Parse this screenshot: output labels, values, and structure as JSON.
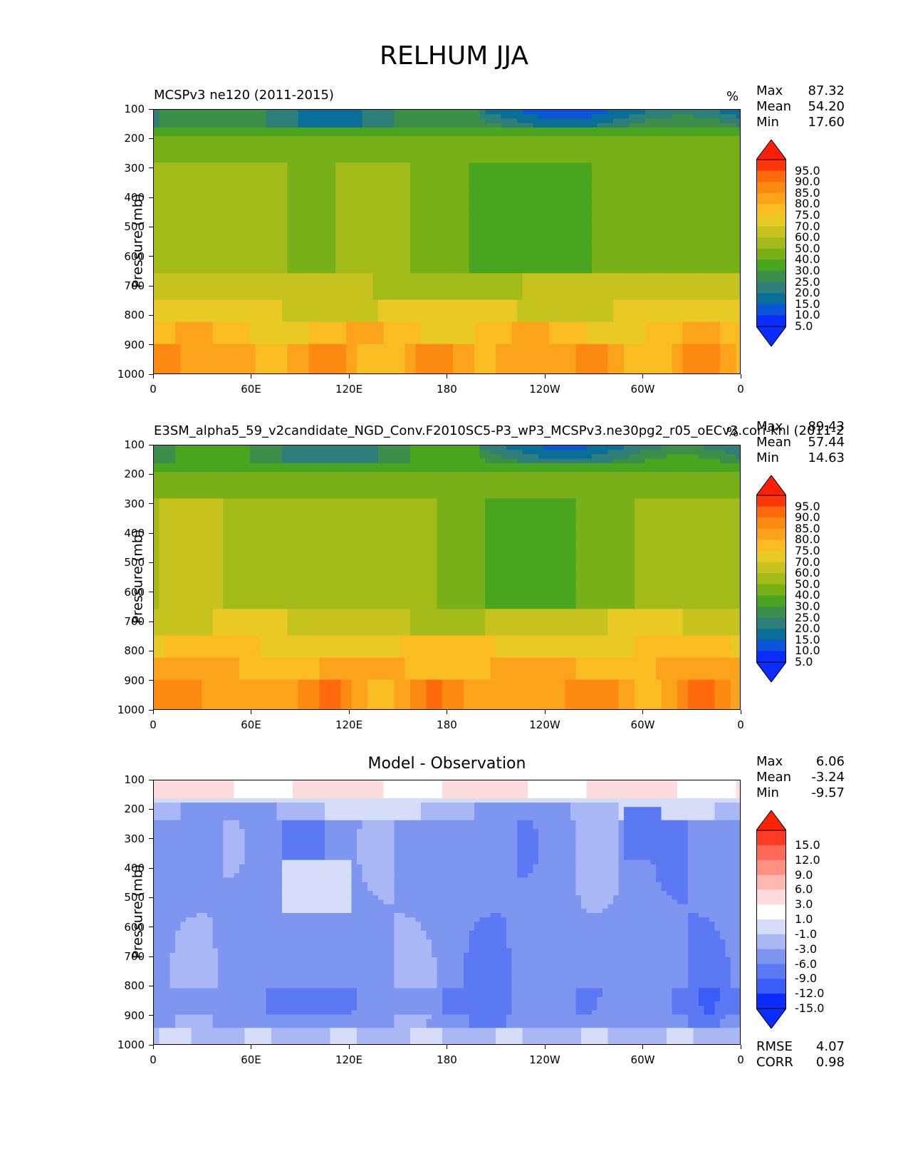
{
  "figure_title": "RELHUM JJA",
  "panels": [
    {
      "title_left": "MCSPv3 ne120 (2011-2015)",
      "title_center": "",
      "units": "%",
      "stats": [
        {
          "label": "Max",
          "value": "87.32"
        },
        {
          "label": "Mean",
          "value": "54.20"
        },
        {
          "label": "Min",
          "value": "17.60"
        }
      ],
      "colorbar_labels": [
        "95.0",
        "90.0",
        "85.0",
        "80.0",
        "75.0",
        "70.0",
        "60.0",
        "50.0",
        "40.0",
        "30.0",
        "25.0",
        "20.0",
        "15.0",
        "10.0",
        "5.0"
      ]
    },
    {
      "title_left": "E3SM_alpha5_59_v2candidate_NGD_Conv.F2010SC5-P3_wP3_MCSPv3.ne30pg2_r05_oECv3.cori-knl (2011-2",
      "title_center": "",
      "units": "%",
      "stats": [
        {
          "label": "Max",
          "value": "89.43"
        },
        {
          "label": "Mean",
          "value": "57.44"
        },
        {
          "label": "Min",
          "value": "14.63"
        }
      ],
      "colorbar_labels": [
        "95.0",
        "90.0",
        "85.0",
        "80.0",
        "75.0",
        "70.0",
        "60.0",
        "50.0",
        "40.0",
        "30.0",
        "25.0",
        "20.0",
        "15.0",
        "10.0",
        "5.0"
      ]
    },
    {
      "title_left": "",
      "title_center": "Model - Observation",
      "units": "",
      "stats": [
        {
          "label": "Max",
          "value": "6.06"
        },
        {
          "label": "Mean",
          "value": "-3.24"
        },
        {
          "label": "Min",
          "value": "-9.57"
        }
      ],
      "colorbar_labels": [
        "15.0",
        "12.0",
        "9.0",
        "6.0",
        "3.0",
        "1.0",
        "-1.0",
        "-3.0",
        "-6.0",
        "-9.0",
        "-12.0",
        "-15.0"
      ],
      "extra_stats": [
        {
          "label": "RMSE",
          "value": "4.07"
        },
        {
          "label": "CORR",
          "value": "0.98"
        }
      ]
    }
  ],
  "chart_data": [
    {
      "type": "heatmap",
      "title": "MCSPv3 ne120 (2011-2015)",
      "ylabel": "Pressure (mb)",
      "xlabel": "",
      "x_ticks": [
        "0",
        "60E",
        "120E",
        "180",
        "120W",
        "60W",
        "0"
      ],
      "y_ticks": [
        "100",
        "200",
        "300",
        "400",
        "500",
        "600",
        "700",
        "800",
        "900",
        "1000"
      ],
      "ylim": [
        1000,
        100
      ],
      "xlim": [
        0,
        360
      ],
      "colormap_levels": [
        5,
        10,
        15,
        20,
        25,
        30,
        40,
        50,
        60,
        70,
        75,
        80,
        85,
        90,
        95
      ],
      "colors": [
        "#0a2cff",
        "#0d55d8",
        "#0a6f98",
        "#2f7e7a",
        "#3c8f4a",
        "#4aa51e",
        "#78b018",
        "#a3bb18",
        "#c6c31e",
        "#e9c923",
        "#f9bd22",
        "#fba31a",
        "#fd8a10",
        "#fe6a0c",
        "#ff3608",
        "#ff1f06"
      ],
      "sample_profile": {
        "pressure": [
          100,
          200,
          300,
          400,
          500,
          600,
          700,
          800,
          900,
          1000
        ],
        "value_approx": [
          30,
          38,
          52,
          55,
          55,
          55,
          60,
          68,
          78,
          82
        ]
      }
    },
    {
      "type": "heatmap",
      "title": "E3SM_alpha5_59_v2candidate_NGD_Conv.F2010SC5-P3_wP3_MCSPv3.ne30pg2_r05_oECv3.cori-knl (2011-2",
      "ylabel": "Pressure (mb)",
      "xlabel": "",
      "x_ticks": [
        "0",
        "60E",
        "120E",
        "180",
        "120W",
        "60W",
        "0"
      ],
      "y_ticks": [
        "100",
        "200",
        "300",
        "400",
        "500",
        "600",
        "700",
        "800",
        "900",
        "1000"
      ],
      "ylim": [
        1000,
        100
      ],
      "xlim": [
        0,
        360
      ],
      "colormap_levels": [
        5,
        10,
        15,
        20,
        25,
        30,
        40,
        50,
        60,
        70,
        75,
        80,
        85,
        90,
        95
      ],
      "sample_profile": {
        "pressure": [
          100,
          200,
          300,
          400,
          500,
          600,
          700,
          800,
          900,
          1000
        ],
        "value_approx": [
          30,
          40,
          55,
          58,
          58,
          58,
          62,
          72,
          82,
          85
        ]
      }
    },
    {
      "type": "heatmap",
      "title": "Model - Observation",
      "ylabel": "Pressure (mb)",
      "xlabel": "",
      "x_ticks": [
        "0",
        "60E",
        "120E",
        "180",
        "120W",
        "60W",
        "0"
      ],
      "y_ticks": [
        "100",
        "200",
        "300",
        "400",
        "500",
        "600",
        "700",
        "800",
        "900",
        "1000"
      ],
      "ylim": [
        1000,
        100
      ],
      "xlim": [
        0,
        360
      ],
      "colormap_levels": [
        -15,
        -12,
        -9,
        -6,
        -3,
        -1,
        1,
        3,
        6,
        9,
        12,
        15
      ],
      "colors": [
        "#0a2cff",
        "#3a5cf8",
        "#5b79f2",
        "#7e96f0",
        "#a9b8f4",
        "#d5ddf8",
        "#ffffff",
        "#ffdcdc",
        "#ffb8b0",
        "#ff8f80",
        "#ff6a58",
        "#ff3a22",
        "#ff2200"
      ],
      "sample_profile": {
        "pressure": [
          100,
          200,
          300,
          400,
          500,
          600,
          700,
          800,
          900,
          1000
        ],
        "value_approx": [
          4,
          -6,
          -5,
          -4,
          -3,
          -4,
          -4,
          -6,
          -5,
          -2
        ]
      }
    }
  ]
}
